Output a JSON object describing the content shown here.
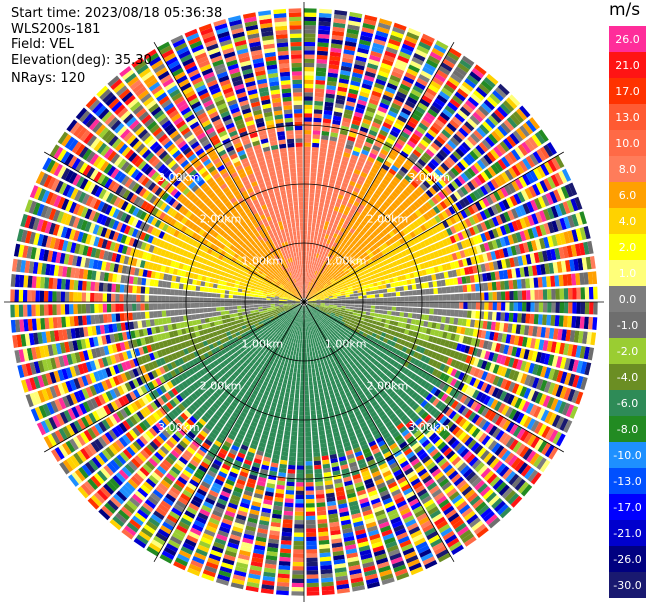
{
  "header": {
    "start_time": "Start time: 2023/08/18 05:36:38",
    "instrument": "WLS200s-181",
    "field": "Field: VEL",
    "elevation": "Elevation(deg): 35.30",
    "nrays": "NRays: 120"
  },
  "colorbar": {
    "unit": "m/s",
    "levels": [
      {
        "label": "26.0",
        "color": "#ff2d9a"
      },
      {
        "label": "21.0",
        "color": "#ff1414"
      },
      {
        "label": "17.0",
        "color": "#ff3200"
      },
      {
        "label": "13.0",
        "color": "#ff5a32"
      },
      {
        "label": "10.0",
        "color": "#ff6a46"
      },
      {
        "label": "8.0",
        "color": "#ff7c5a"
      },
      {
        "label": "6.0",
        "color": "#ffa000"
      },
      {
        "label": "4.0",
        "color": "#ffd200"
      },
      {
        "label": "2.0",
        "color": "#ffff00"
      },
      {
        "label": "1.0",
        "color": "#ffff7a"
      },
      {
        "label": "0.0",
        "color": "#7d7d7d"
      },
      {
        "label": "-1.0",
        "color": "#6e6e6e"
      },
      {
        "label": "-2.0",
        "color": "#9acd32"
      },
      {
        "label": "-4.0",
        "color": "#6b8e23"
      },
      {
        "label": "-6.0",
        "color": "#2e8b57"
      },
      {
        "label": "-8.0",
        "color": "#228b22"
      },
      {
        "label": "-10.0",
        "color": "#1e90ff"
      },
      {
        "label": "-13.0",
        "color": "#0050ff"
      },
      {
        "label": "-17.0",
        "color": "#0000ff"
      },
      {
        "label": "-21.0",
        "color": "#0000cd"
      },
      {
        "label": "-26.0",
        "color": "#000080"
      },
      {
        "label": "-30.0",
        "color": "#191970"
      }
    ]
  },
  "chart_data": {
    "type": "heatmap",
    "title": "",
    "projection": "polar PPI scan",
    "field": "VEL",
    "units": "m/s",
    "n_rays": 120,
    "elevation_deg": 35.3,
    "max_range_km": 7.0,
    "range_ring_labels_km": [
      1.0,
      2.0,
      3.0
    ],
    "ring_label_texts": [
      "1.00km",
      "2.00km",
      "3.00km"
    ],
    "spoke_angles_deg": [
      0,
      30,
      60,
      90,
      120,
      150,
      180,
      210,
      240,
      270,
      300,
      330
    ],
    "velocity_pattern": {
      "north_sector": "positive 4 to 13 m/s (orange, salmon)",
      "east_west_axis": "near 0 m/s (gray)",
      "south_sector": "negative -2 to -8 m/s (green)",
      "beyond_4km": "noise, random colors"
    },
    "legend_placement": "right"
  }
}
